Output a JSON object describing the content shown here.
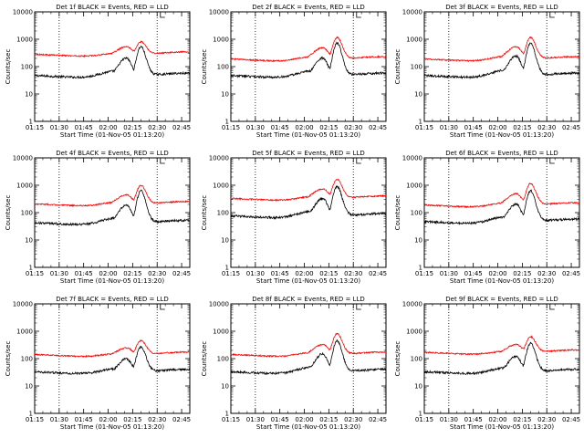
{
  "common": {
    "xlabel": "Start Time (01-Nov-05 01:13:20)",
    "ylabel": "Counts/sec",
    "x_ticks": [
      "01:15",
      "01:30",
      "01:45",
      "02:00",
      "02:15",
      "02:30",
      "02:45"
    ],
    "y_ticks": [
      "1",
      "10",
      "100",
      "1000",
      "10000"
    ],
    "x_range_min": [
      75,
      170
    ],
    "y_range": [
      1,
      10000
    ],
    "y_scale": "log",
    "vertical_dotted_lines_min": [
      90,
      150
    ],
    "series_colors": {
      "events": "#000000",
      "lld": "#ff0000"
    }
  },
  "chart_data": [
    {
      "type": "line",
      "title": "Det 1f BLACK = Events, RED = LLD",
      "marker_label": "L",
      "series": [
        {
          "name": "Events",
          "base": 50,
          "peak1": 250,
          "peak2": 600
        },
        {
          "name": "LLD",
          "base": 300,
          "peak1": 650,
          "peak2": 900
        }
      ]
    },
    {
      "type": "line",
      "title": "Det 2f BLACK = Events, RED = LLD",
      "marker_label": "L",
      "series": [
        {
          "name": "Events",
          "base": 50,
          "peak1": 250,
          "peak2": 800
        },
        {
          "name": "LLD",
          "base": 200,
          "peak1": 600,
          "peak2": 1300
        }
      ]
    },
    {
      "type": "line",
      "title": "Det 3f BLACK = Events, RED = LLD",
      "marker_label": "L",
      "series": [
        {
          "name": "Events",
          "base": 50,
          "peak1": 300,
          "peak2": 800
        },
        {
          "name": "LLD",
          "base": 200,
          "peak1": 650,
          "peak2": 1300
        }
      ]
    },
    {
      "type": "line",
      "title": "Det 4f BLACK = Events, RED = LLD",
      "marker_label": "L",
      "series": [
        {
          "name": "Events",
          "base": 45,
          "peak1": 230,
          "peak2": 700
        },
        {
          "name": "LLD",
          "base": 220,
          "peak1": 550,
          "peak2": 1100
        }
      ]
    },
    {
      "type": "line",
      "title": "Det 5f BLACK = Events, RED = LLD",
      "marker_label": "L",
      "series": [
        {
          "name": "Events",
          "base": 80,
          "peak1": 400,
          "peak2": 1000
        },
        {
          "name": "LLD",
          "base": 350,
          "peak1": 900,
          "peak2": 1800
        }
      ]
    },
    {
      "type": "line",
      "title": "Det 6f BLACK = Events, RED = LLD",
      "marker_label": "L",
      "series": [
        {
          "name": "Events",
          "base": 50,
          "peak1": 250,
          "peak2": 700
        },
        {
          "name": "LLD",
          "base": 200,
          "peak1": 600,
          "peak2": 1300
        }
      ]
    },
    {
      "type": "line",
      "title": "Det 7f BLACK = Events, RED = LLD",
      "marker_label": "L",
      "series": [
        {
          "name": "Events",
          "base": 35,
          "peak1": 120,
          "peak2": 300
        },
        {
          "name": "LLD",
          "base": 150,
          "peak1": 300,
          "peak2": 500
        }
      ]
    },
    {
      "type": "line",
      "title": "Det 8f BLACK = Events, RED = LLD",
      "marker_label": "L",
      "series": [
        {
          "name": "Events",
          "base": 35,
          "peak1": 180,
          "peak2": 500
        },
        {
          "name": "LLD",
          "base": 150,
          "peak1": 400,
          "peak2": 900
        }
      ]
    },
    {
      "type": "line",
      "title": "Det 9f BLACK = Events, RED = LLD",
      "marker_label": "L",
      "series": [
        {
          "name": "Events",
          "base": 35,
          "peak1": 150,
          "peak2": 400
        },
        {
          "name": "LLD",
          "base": 180,
          "peak1": 400,
          "peak2": 700
        }
      ]
    }
  ]
}
